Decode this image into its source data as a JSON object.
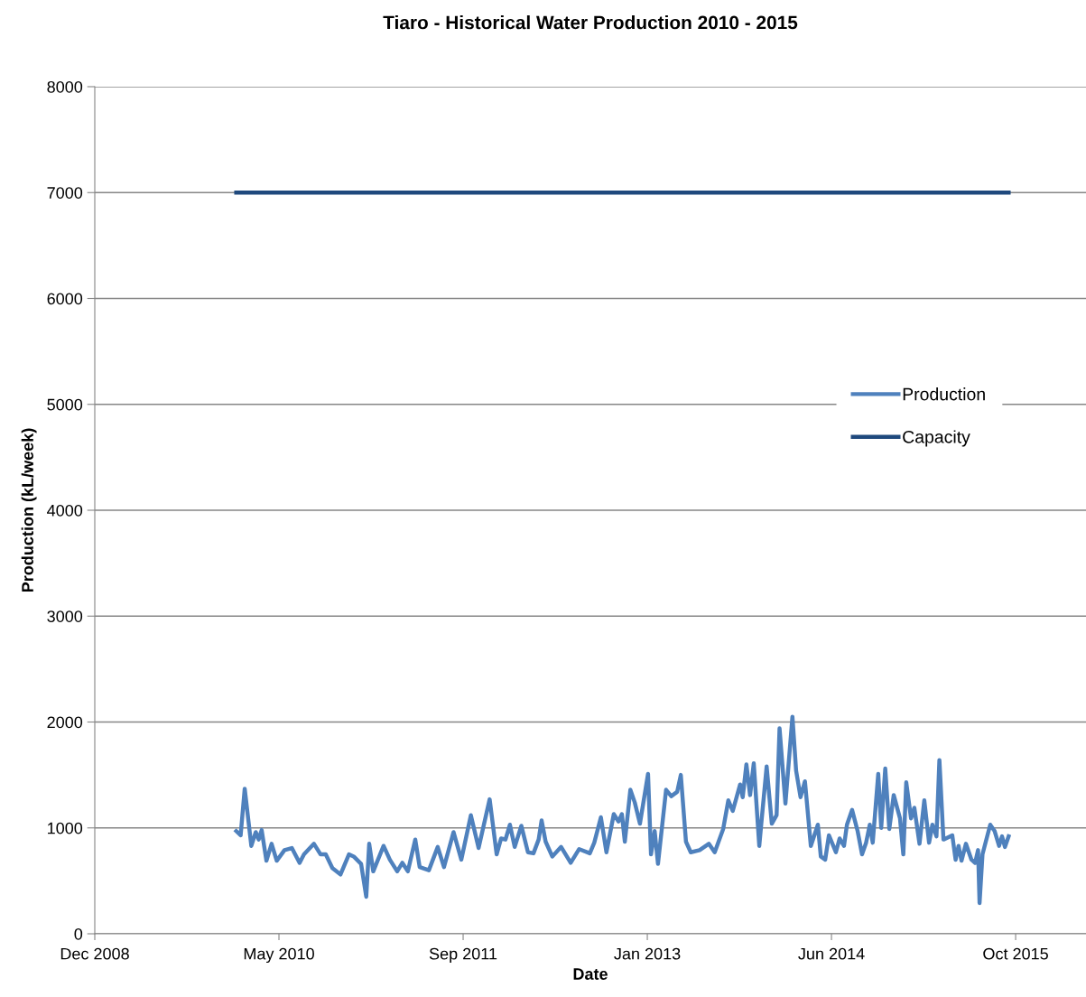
{
  "chart_data": {
    "type": "line",
    "title": "Tiaro - Historical Water Production 2010 - 2015",
    "xlabel": "Date",
    "ylabel": "Production (kL/week)",
    "xlim": [
      "2008-12-20",
      "2016-05-03"
    ],
    "xticks": [
      {
        "value": "2008-12-20",
        "label": "Dec 2008"
      },
      {
        "value": "2010-05-04",
        "label": "May 2010"
      },
      {
        "value": "2011-09-16",
        "label": "Sep 2011"
      },
      {
        "value": "2013-01-28",
        "label": "Jan 2013"
      },
      {
        "value": "2014-06-12",
        "label": "Jun 2014"
      },
      {
        "value": "2015-10-25",
        "label": "Oct 2015"
      }
    ],
    "ylim": [
      0,
      8000
    ],
    "yticks": [
      0,
      1000,
      2000,
      3000,
      4000,
      5000,
      6000,
      7000,
      8000
    ],
    "grid": "y",
    "legend": "right",
    "marker": "none",
    "line_style": "solid",
    "series": [
      {
        "name": "Production",
        "color": "#4f81bd",
        "x": [
          "2010-01-08",
          "2010-01-20",
          "2010-01-31",
          "2010-02-18",
          "2010-03-02",
          "2010-03-10",
          "2010-03-18",
          "2010-03-31",
          "2010-04-14",
          "2010-04-28",
          "2010-05-19",
          "2010-06-08",
          "2010-06-29",
          "2010-07-11",
          "2010-08-07",
          "2010-08-25",
          "2010-09-08",
          "2010-09-26",
          "2010-10-18",
          "2010-11-10",
          "2010-11-23",
          "2010-12-13",
          "2010-12-27",
          "2011-01-04",
          "2011-01-15",
          "2011-02-12",
          "2011-03-01",
          "2011-03-21",
          "2011-04-04",
          "2011-04-19",
          "2011-05-09",
          "2011-05-21",
          "2011-06-15",
          "2011-07-09",
          "2011-07-26",
          "2011-08-21",
          "2011-09-11",
          "2011-10-07",
          "2011-10-28",
          "2011-11-27",
          "2011-12-16",
          "2011-12-28",
          "2012-01-09",
          "2012-01-21",
          "2012-02-03",
          "2012-02-21",
          "2012-03-10",
          "2012-03-25",
          "2012-04-08",
          "2012-04-16",
          "2012-04-27",
          "2012-05-15",
          "2012-06-08",
          "2012-07-04",
          "2012-07-27",
          "2012-08-25",
          "2012-09-06",
          "2012-09-24",
          "2012-10-09",
          "2012-10-29",
          "2012-11-11",
          "2012-11-20",
          "2012-11-28",
          "2012-12-13",
          "2012-12-25",
          "2013-01-08",
          "2013-01-30",
          "2013-02-07",
          "2013-02-17",
          "2013-02-26",
          "2013-03-20",
          "2013-04-03",
          "2013-04-19",
          "2013-04-29",
          "2013-05-13",
          "2013-05-26",
          "2013-06-19",
          "2013-07-14",
          "2013-07-30",
          "2013-08-22",
          "2013-09-05",
          "2013-09-17",
          "2013-10-07",
          "2013-10-14",
          "2013-10-24",
          "2013-11-03",
          "2013-11-13",
          "2013-11-28",
          "2013-12-04",
          "2013-12-18",
          "2014-01-01",
          "2014-01-14",
          "2014-01-22",
          "2014-02-07",
          "2014-02-26",
          "2014-03-08",
          "2014-03-20",
          "2014-04-01",
          "2014-04-17",
          "2014-05-06",
          "2014-05-14",
          "2014-05-26",
          "2014-06-05",
          "2014-06-24",
          "2014-07-04",
          "2014-07-16",
          "2014-07-24",
          "2014-08-07",
          "2014-08-22",
          "2014-09-03",
          "2014-09-14",
          "2014-09-24",
          "2014-10-02",
          "2014-10-17",
          "2014-10-25",
          "2014-11-05",
          "2014-11-16",
          "2014-11-28",
          "2014-12-15",
          "2014-12-24",
          "2015-01-01",
          "2015-01-14",
          "2015-01-23",
          "2015-02-06",
          "2015-02-19",
          "2015-03-04",
          "2015-03-13",
          "2015-03-24",
          "2015-04-01",
          "2015-04-12",
          "2015-05-06",
          "2015-05-15",
          "2015-05-23",
          "2015-05-31",
          "2015-06-12",
          "2015-06-27",
          "2015-07-07",
          "2015-07-15",
          "2015-07-19",
          "2015-07-27",
          "2015-08-17",
          "2015-08-29",
          "2015-09-10",
          "2015-09-18",
          "2015-09-26",
          "2015-10-06"
        ],
        "values": [
          970,
          930,
          1370,
          830,
          960,
          890,
          980,
          690,
          850,
          690,
          790,
          810,
          670,
          750,
          850,
          750,
          750,
          620,
          560,
          750,
          730,
          660,
          350,
          850,
          590,
          830,
          700,
          590,
          670,
          590,
          890,
          630,
          600,
          820,
          630,
          960,
          700,
          1120,
          810,
          1270,
          750,
          900,
          890,
          1030,
          820,
          1020,
          770,
          760,
          890,
          1070,
          870,
          730,
          820,
          670,
          800,
          760,
          860,
          1100,
          770,
          1130,
          1060,
          1130,
          870,
          1360,
          1240,
          1040,
          1510,
          750,
          970,
          660,
          1360,
          1300,
          1340,
          1500,
          870,
          770,
          790,
          850,
          770,
          990,
          1260,
          1160,
          1410,
          1290,
          1600,
          1310,
          1610,
          830,
          1060,
          1580,
          1040,
          1120,
          1940,
          1230,
          2050,
          1540,
          1290,
          1440,
          830,
          1030,
          730,
          700,
          930,
          770,
          900,
          830,
          1030,
          1170,
          970,
          750,
          860,
          1030,
          860,
          1510,
          1000,
          1560,
          990,
          1310,
          1090,
          750,
          1430,
          1090,
          1190,
          850,
          1260,
          860,
          1030,
          920,
          1640,
          890,
          930,
          700,
          830,
          690,
          850,
          700,
          670,
          790,
          290,
          750,
          1030,
          970,
          830,
          920,
          820,
          920
        ]
      },
      {
        "name": "Capacity",
        "color": "#1f497d",
        "x": [
          "2010-01-08",
          "2015-10-06"
        ],
        "values": [
          7000,
          7000
        ]
      }
    ]
  }
}
